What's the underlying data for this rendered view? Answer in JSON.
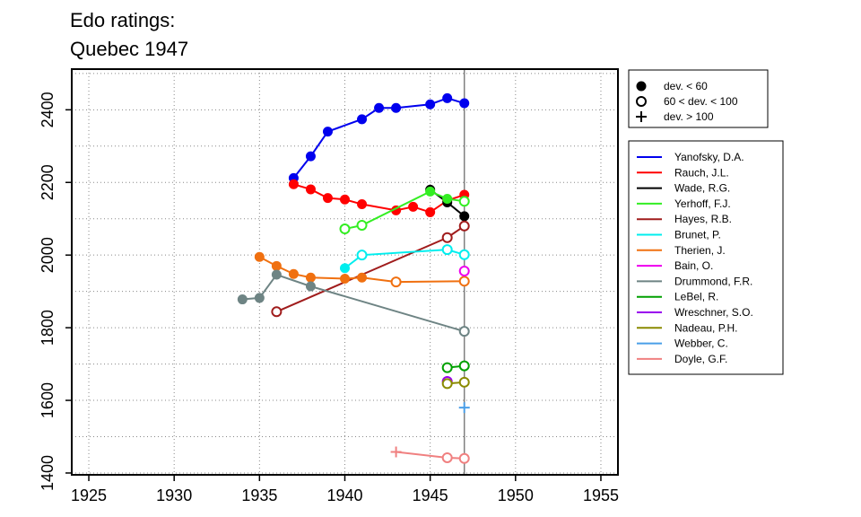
{
  "chart_data": {
    "type": "line",
    "title": "Edo ratings:",
    "subtitle": "Quebec 1947",
    "xlabel": "",
    "ylabel": "",
    "xlim": [
      1924,
      1956
    ],
    "ylim": [
      1395,
      2512
    ],
    "x_ticks": [
      1925,
      1930,
      1935,
      1940,
      1945,
      1950,
      1955
    ],
    "y_ticks": [
      1400,
      1600,
      1800,
      2000,
      2200,
      2400
    ],
    "grid": true,
    "reference_line_x": 1947,
    "marker_legend": [
      {
        "marker": "filled-circle",
        "label": "dev. < 60"
      },
      {
        "marker": "open-circle",
        "label": "60 < dev. < 100"
      },
      {
        "marker": "plus",
        "label": "dev. > 100"
      }
    ],
    "series": [
      {
        "name": "Yanofsky, D.A.",
        "color": "#0000EE",
        "points": [
          [
            1937,
            2212,
            "f"
          ],
          [
            1938,
            2272,
            "f"
          ],
          [
            1939,
            2340,
            "f"
          ],
          [
            1941,
            2374,
            "f"
          ],
          [
            1942,
            2405,
            "f"
          ],
          [
            1943,
            2405,
            "f"
          ],
          [
            1945,
            2415,
            "f"
          ],
          [
            1946,
            2432,
            "f"
          ],
          [
            1947,
            2418,
            "f"
          ]
        ]
      },
      {
        "name": "Rauch, J.L.",
        "color": "#FF0000",
        "points": [
          [
            1937,
            2195,
            "f"
          ],
          [
            1938,
            2181,
            "f"
          ],
          [
            1939,
            2157,
            "f"
          ],
          [
            1940,
            2153,
            "f"
          ],
          [
            1941,
            2140,
            "f"
          ],
          [
            1943,
            2123,
            "f"
          ],
          [
            1944,
            2133,
            "f"
          ],
          [
            1945,
            2118,
            "f"
          ],
          [
            1946,
            2150,
            "f"
          ],
          [
            1947,
            2166,
            "f"
          ]
        ]
      },
      {
        "name": "Wade, R.G.",
        "color": "#000000",
        "points": [
          [
            1945,
            2180,
            "f"
          ],
          [
            1946,
            2145,
            "f"
          ],
          [
            1947,
            2107,
            "f"
          ]
        ]
      },
      {
        "name": "Yerhoff, F.J.",
        "color": "#33EE22",
        "points": [
          [
            1940,
            2072,
            "o"
          ],
          [
            1941,
            2082,
            "o"
          ],
          [
            1945,
            2175,
            "f"
          ],
          [
            1946,
            2155,
            "f"
          ],
          [
            1947,
            2148,
            "o"
          ]
        ]
      },
      {
        "name": "Hayes, R.B.",
        "color": "#A01C1C",
        "points": [
          [
            1936,
            1844,
            "o"
          ],
          [
            1946,
            2048,
            "o"
          ],
          [
            1947,
            2080,
            "o"
          ]
        ]
      },
      {
        "name": "Brunet, P.",
        "color": "#00EEEE",
        "points": [
          [
            1940,
            1964,
            "f"
          ],
          [
            1941,
            2000,
            "o"
          ],
          [
            1946,
            2015,
            "o"
          ],
          [
            1947,
            2001,
            "o"
          ]
        ]
      },
      {
        "name": "Therien, J.",
        "color": "#F07010",
        "points": [
          [
            1935,
            1995,
            "f"
          ],
          [
            1936,
            1970,
            "f"
          ],
          [
            1937,
            1948,
            "f"
          ],
          [
            1938,
            1938,
            "f"
          ],
          [
            1940,
            1935,
            "f"
          ],
          [
            1941,
            1938,
            "f"
          ],
          [
            1943,
            1926,
            "o"
          ],
          [
            1947,
            1928,
            "o"
          ]
        ]
      },
      {
        "name": "Bain, O.",
        "color": "#EE00EE",
        "points": [
          [
            1947,
            1956,
            "o"
          ]
        ]
      },
      {
        "name": "Drummond, F.R.",
        "color": "#6E8484",
        "points": [
          [
            1934,
            1878,
            "f"
          ],
          [
            1935,
            1882,
            "f"
          ],
          [
            1936,
            1946,
            "f"
          ],
          [
            1938,
            1914,
            "f"
          ],
          [
            1947,
            1790,
            "o"
          ]
        ]
      },
      {
        "name": "LeBel, R.",
        "color": "#00A000",
        "points": [
          [
            1946,
            1690,
            "o"
          ],
          [
            1947,
            1695,
            "o"
          ]
        ]
      },
      {
        "name": "Wreschner, S.O.",
        "color": "#9A00EE",
        "points": [
          [
            1946,
            1652,
            "o"
          ]
        ]
      },
      {
        "name": "Nadeau, P.H.",
        "color": "#8A8A00",
        "points": [
          [
            1946,
            1646,
            "o"
          ],
          [
            1947,
            1650,
            "o"
          ]
        ]
      },
      {
        "name": "Webber, C.",
        "color": "#4A9FE8",
        "points": [
          [
            1947,
            1580,
            "p"
          ]
        ]
      },
      {
        "name": "Doyle, G.F.",
        "color": "#F08080",
        "points": [
          [
            1943,
            1458,
            "p"
          ],
          [
            1946,
            1442,
            "o"
          ],
          [
            1947,
            1440,
            "o"
          ]
        ]
      }
    ]
  }
}
